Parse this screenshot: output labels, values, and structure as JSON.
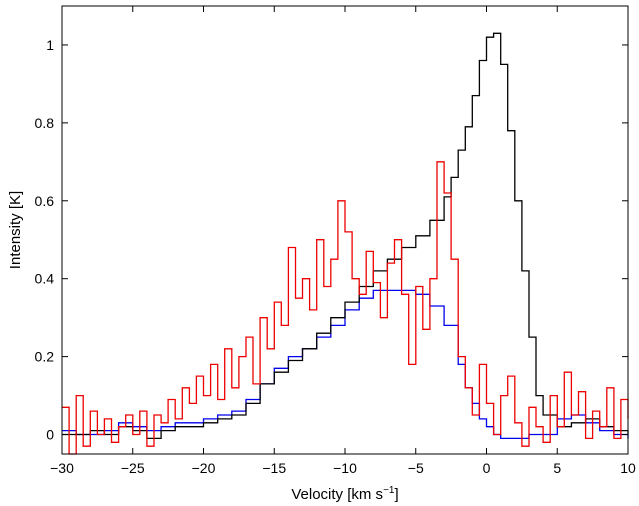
{
  "chart_data": {
    "type": "line",
    "step": true,
    "title": "",
    "xlabel": "Velocity [km s",
    "xlabel_sup": "−1",
    "xlabel_end": "]",
    "ylabel": "Intensity [K]",
    "xlim": [
      -30,
      10
    ],
    "ylim": [
      -0.05,
      1.1
    ],
    "grid": false,
    "legend": "none",
    "xticks": [
      -30,
      -25,
      -20,
      -15,
      -10,
      -5,
      0,
      5,
      10
    ],
    "xtick_labels": [
      "−30",
      "−25",
      "−20",
      "−15",
      "−10",
      "−5",
      "0",
      "5",
      "10"
    ],
    "yticks": [
      0,
      0.2,
      0.4,
      0.6,
      0.8,
      1
    ],
    "ytick_labels": [
      "0",
      "0.2",
      "0.4",
      "0.6",
      "0.8",
      "1"
    ],
    "series": [
      {
        "color": "#0000ee",
        "x": [
          -30,
          -29,
          -28,
          -27,
          -26,
          -25,
          -24,
          -23,
          -22,
          -21,
          -20,
          -19,
          -18,
          -17,
          -16,
          -15,
          -14,
          -13,
          -12,
          -11,
          -10,
          -9,
          -8,
          -7,
          -6,
          -5,
          -4,
          -3,
          -2,
          -1.5,
          -1,
          -0.5,
          0,
          0.5,
          1,
          1.5,
          2,
          3,
          4,
          5,
          6,
          7,
          8,
          9,
          10
        ],
        "y": [
          0.01,
          0.0,
          0.0,
          0.01,
          0.03,
          0.02,
          0.01,
          0.02,
          0.03,
          0.03,
          0.04,
          0.05,
          0.06,
          0.09,
          0.13,
          0.17,
          0.2,
          0.22,
          0.25,
          0.28,
          0.32,
          0.35,
          0.37,
          0.37,
          0.37,
          0.36,
          0.33,
          0.28,
          0.18,
          0.12,
          0.08,
          0.04,
          0.02,
          0.0,
          -0.01,
          -0.01,
          -0.01,
          0.0,
          0.0,
          0.04,
          0.05,
          0.03,
          0.01,
          0.0,
          -0.01
        ]
      },
      {
        "color": "#000000",
        "x": [
          -30,
          -29,
          -28,
          -27,
          -26,
          -25,
          -24,
          -23,
          -22,
          -21,
          -20,
          -19,
          -18,
          -17,
          -16,
          -15,
          -14,
          -13,
          -12,
          -11,
          -10,
          -9,
          -8,
          -7,
          -6,
          -5,
          -4,
          -3,
          -2.5,
          -2,
          -1.5,
          -1,
          -0.5,
          0,
          0.5,
          1,
          1.5,
          2,
          2.5,
          3,
          3.5,
          4,
          5,
          6,
          7,
          8,
          9,
          10
        ],
        "y": [
          0.0,
          0.0,
          0.01,
          0.0,
          0.02,
          0.01,
          -0.01,
          0.01,
          0.02,
          0.02,
          0.03,
          0.04,
          0.05,
          0.08,
          0.13,
          0.16,
          0.19,
          0.22,
          0.26,
          0.3,
          0.34,
          0.38,
          0.42,
          0.45,
          0.48,
          0.51,
          0.55,
          0.61,
          0.66,
          0.73,
          0.79,
          0.87,
          0.96,
          1.02,
          1.03,
          0.95,
          0.78,
          0.6,
          0.42,
          0.25,
          0.1,
          0.05,
          0.02,
          0.03,
          0.04,
          0.02,
          0.01,
          0.0
        ]
      },
      {
        "color": "#ee0000",
        "x": [
          -30,
          -29.5,
          -29,
          -28.5,
          -28,
          -27.5,
          -27,
          -26.5,
          -26,
          -25.5,
          -25,
          -24.5,
          -24,
          -23.5,
          -23,
          -22.5,
          -22,
          -21.5,
          -21,
          -20.5,
          -20,
          -19.5,
          -19,
          -18.5,
          -18,
          -17.5,
          -17,
          -16.5,
          -16,
          -15.5,
          -15,
          -14.5,
          -14,
          -13.5,
          -13,
          -12.5,
          -12,
          -11.5,
          -11,
          -10.5,
          -10,
          -9.5,
          -9,
          -8.5,
          -8,
          -7.5,
          -7,
          -6.5,
          -6,
          -5.5,
          -5,
          -4.5,
          -4,
          -3.5,
          -3,
          -2.5,
          -2,
          -1.5,
          -1,
          -0.5,
          0,
          0.5,
          1,
          1.5,
          2,
          2.5,
          3,
          3.5,
          4,
          4.5,
          5,
          5.5,
          6,
          6.5,
          7,
          7.5,
          8,
          8.5,
          9,
          9.5,
          10
        ],
        "y": [
          0.07,
          -0.05,
          0.1,
          -0.03,
          0.06,
          0.0,
          0.04,
          -0.02,
          0.02,
          0.05,
          0.0,
          0.06,
          -0.03,
          0.05,
          0.03,
          0.09,
          0.04,
          0.12,
          0.08,
          0.15,
          0.1,
          0.18,
          0.09,
          0.22,
          0.12,
          0.2,
          0.25,
          0.13,
          0.3,
          0.22,
          0.34,
          0.28,
          0.48,
          0.35,
          0.4,
          0.32,
          0.5,
          0.38,
          0.45,
          0.6,
          0.52,
          0.4,
          0.36,
          0.47,
          0.39,
          0.3,
          0.44,
          0.5,
          0.36,
          0.18,
          0.38,
          0.27,
          0.4,
          0.7,
          0.62,
          0.45,
          0.2,
          0.12,
          0.05,
          0.18,
          0.08,
          0.0,
          0.1,
          0.15,
          0.03,
          -0.03,
          0.07,
          0.02,
          -0.02,
          0.1,
          0.02,
          0.16,
          0.05,
          0.11,
          -0.01,
          0.06,
          0.02,
          0.12,
          -0.01,
          0.09,
          0.04
        ]
      }
    ]
  }
}
